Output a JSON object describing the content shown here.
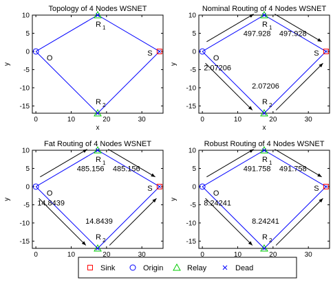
{
  "chart_data": [
    {
      "type": "scatter",
      "title": "Topology of 4 Nodes WSNET",
      "xlabel": "x",
      "ylabel": "y",
      "xlim": [
        -1,
        36
      ],
      "ylim": [
        -17,
        10
      ],
      "xticks": [
        "0",
        "10",
        "20",
        "30"
      ],
      "yticks": [
        "10",
        "5",
        "0",
        "-5",
        "-10",
        "-15"
      ],
      "nodes": [
        {
          "label": "O",
          "type": "Origin",
          "x": 0,
          "y": 0
        },
        {
          "label": "R",
          "sub": "1",
          "type": "Relay",
          "x": 17.5,
          "y": 10
        },
        {
          "label": "R",
          "sub": "2",
          "type": "Relay",
          "x": 17.5,
          "y": -17
        },
        {
          "label": "S",
          "type": "Sink",
          "x": 35,
          "y": 0
        }
      ],
      "flows": []
    },
    {
      "type": "scatter",
      "title": "Nominal Routing of 4 Nodes WSNET",
      "xlabel": "x",
      "ylabel": "y",
      "xlim": [
        -1,
        36
      ],
      "ylim": [
        -17,
        10
      ],
      "xticks": [
        "0",
        "10",
        "20",
        "30"
      ],
      "yticks": [
        "10",
        "5",
        "0",
        "-5",
        "-10",
        "-15"
      ],
      "nodes": [
        {
          "label": "O",
          "type": "Origin",
          "x": 0,
          "y": 0
        },
        {
          "label": "R",
          "sub": "1",
          "type": "Relay",
          "x": 17.5,
          "y": 10
        },
        {
          "label": "R",
          "sub": "2",
          "type": "Relay",
          "x": 17.5,
          "y": -17
        },
        {
          "label": "S",
          "type": "Sink",
          "x": 35,
          "y": 0
        }
      ],
      "flows": [
        "497.928",
        "497.928",
        "2.07206",
        "2.07206"
      ]
    },
    {
      "type": "scatter",
      "title": "Fat Routing of 4 Nodes WSNET",
      "xlabel": "x",
      "ylabel": "y",
      "xlim": [
        -1,
        36
      ],
      "ylim": [
        -17,
        10
      ],
      "xticks": [
        "0",
        "10",
        "20",
        "30"
      ],
      "yticks": [
        "10",
        "5",
        "0",
        "-5",
        "-10",
        "-15"
      ],
      "nodes": [
        {
          "label": "O",
          "type": "Origin",
          "x": 0,
          "y": 0
        },
        {
          "label": "R",
          "sub": "1",
          "type": "Relay",
          "x": 17.5,
          "y": 10
        },
        {
          "label": "R",
          "sub": "2",
          "type": "Relay",
          "x": 17.5,
          "y": -17
        },
        {
          "label": "S",
          "type": "Sink",
          "x": 35,
          "y": 0
        }
      ],
      "flows": [
        "485.156",
        "485.156",
        "14.8439",
        "14.8439"
      ]
    },
    {
      "type": "scatter",
      "title": "Robust Routing of 4 Nodes WSNET",
      "xlabel": "x",
      "ylabel": "y",
      "xlim": [
        -1,
        36
      ],
      "ylim": [
        -17,
        10
      ],
      "xticks": [
        "0",
        "10",
        "20",
        "30"
      ],
      "yticks": [
        "10",
        "5",
        "0",
        "-5",
        "-10",
        "-15"
      ],
      "nodes": [
        {
          "label": "O",
          "type": "Origin",
          "x": 0,
          "y": 0
        },
        {
          "label": "R",
          "sub": "1",
          "type": "Relay",
          "x": 17.5,
          "y": 10
        },
        {
          "label": "R",
          "sub": "2",
          "type": "Relay",
          "x": 17.5,
          "y": -17
        },
        {
          "label": "S",
          "type": "Sink",
          "x": 35,
          "y": 0
        }
      ],
      "flows": [
        "491.758",
        "491.758",
        "8.24241",
        "8.24241"
      ]
    }
  ],
  "legend": {
    "position": "bottom",
    "items": [
      {
        "label": "Sink",
        "marker": "square",
        "color": "#ff0000"
      },
      {
        "label": "Origin",
        "marker": "circle",
        "color": "#0000ff"
      },
      {
        "label": "Relay",
        "marker": "triangle",
        "color": "#00cc00"
      },
      {
        "label": "Dead",
        "marker": "x",
        "color": "#0000ff"
      }
    ]
  },
  "colors": {
    "edges": "#0000ff",
    "arrows": "#000000"
  }
}
